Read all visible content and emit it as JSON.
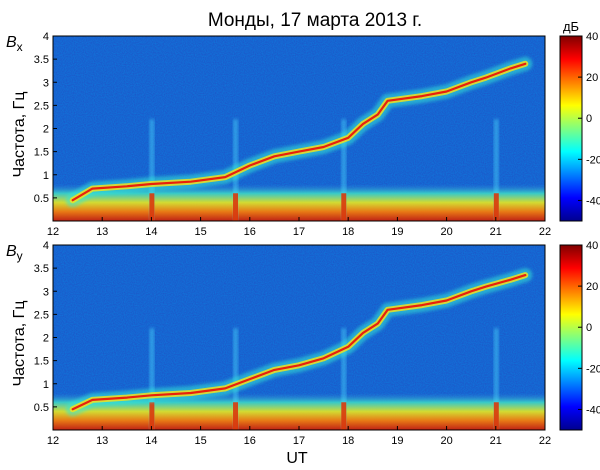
{
  "chart_data": {
    "type": "heatmap",
    "title": "Монды, 17 марта 2013 г.",
    "xlabel": "UT",
    "xlim": [
      12,
      22
    ],
    "x_ticks": [
      "12",
      "13",
      "14",
      "15",
      "16",
      "17",
      "18",
      "19",
      "20",
      "21",
      "22"
    ],
    "colorbar": {
      "unit": "дБ",
      "range": [
        -50,
        40
      ],
      "colormap": "jet",
      "ticks": [
        "40",
        "20",
        "0",
        "-20",
        "-40"
      ]
    },
    "panels": [
      {
        "name": "Bx-panel",
        "component": {
          "letter": "B",
          "subscript": "x"
        },
        "ylabel": "Частота, Гц",
        "ylim": [
          0,
          4
        ],
        "y_ticks": [
          "0.5",
          "1",
          "1.5",
          "2",
          "2.5",
          "3",
          "3.5",
          "4"
        ],
        "emission_band": [
          {
            "ut": 12.4,
            "freq_hz": 0.45
          },
          {
            "ut": 12.8,
            "freq_hz": 0.7
          },
          {
            "ut": 13.5,
            "freq_hz": 0.75
          },
          {
            "ut": 14.0,
            "freq_hz": 0.8
          },
          {
            "ut": 14.8,
            "freq_hz": 0.85
          },
          {
            "ut": 15.5,
            "freq_hz": 0.95
          },
          {
            "ut": 16.0,
            "freq_hz": 1.2
          },
          {
            "ut": 16.5,
            "freq_hz": 1.4
          },
          {
            "ut": 17.0,
            "freq_hz": 1.5
          },
          {
            "ut": 17.5,
            "freq_hz": 1.6
          },
          {
            "ut": 18.0,
            "freq_hz": 1.8
          },
          {
            "ut": 18.3,
            "freq_hz": 2.1
          },
          {
            "ut": 18.6,
            "freq_hz": 2.3
          },
          {
            "ut": 18.8,
            "freq_hz": 2.6
          },
          {
            "ut": 19.5,
            "freq_hz": 2.7
          },
          {
            "ut": 20.0,
            "freq_hz": 2.8
          },
          {
            "ut": 20.5,
            "freq_hz": 3.0
          },
          {
            "ut": 20.8,
            "freq_hz": 3.1
          },
          {
            "ut": 21.3,
            "freq_hz": 3.3
          },
          {
            "ut": 21.6,
            "freq_hz": 3.4
          }
        ],
        "broadband_bursts_ut": [
          14.0,
          15.7,
          17.9,
          21.0
        ]
      },
      {
        "name": "By-panel",
        "component": {
          "letter": "B",
          "subscript": "y"
        },
        "ylabel": "Частота, Гц",
        "ylim": [
          0,
          4
        ],
        "y_ticks": [
          "0.5",
          "1",
          "1.5",
          "2",
          "2.5",
          "3",
          "3.5",
          "4"
        ],
        "emission_band": [
          {
            "ut": 12.4,
            "freq_hz": 0.45
          },
          {
            "ut": 12.8,
            "freq_hz": 0.65
          },
          {
            "ut": 13.5,
            "freq_hz": 0.7
          },
          {
            "ut": 14.0,
            "freq_hz": 0.75
          },
          {
            "ut": 14.8,
            "freq_hz": 0.8
          },
          {
            "ut": 15.5,
            "freq_hz": 0.9
          },
          {
            "ut": 16.0,
            "freq_hz": 1.1
          },
          {
            "ut": 16.5,
            "freq_hz": 1.3
          },
          {
            "ut": 17.0,
            "freq_hz": 1.4
          },
          {
            "ut": 17.5,
            "freq_hz": 1.55
          },
          {
            "ut": 18.0,
            "freq_hz": 1.8
          },
          {
            "ut": 18.3,
            "freq_hz": 2.1
          },
          {
            "ut": 18.6,
            "freq_hz": 2.3
          },
          {
            "ut": 18.8,
            "freq_hz": 2.6
          },
          {
            "ut": 19.5,
            "freq_hz": 2.7
          },
          {
            "ut": 20.0,
            "freq_hz": 2.8
          },
          {
            "ut": 20.5,
            "freq_hz": 3.0
          },
          {
            "ut": 20.8,
            "freq_hz": 3.1
          },
          {
            "ut": 21.3,
            "freq_hz": 3.25
          },
          {
            "ut": 21.6,
            "freq_hz": 3.35
          }
        ],
        "broadband_bursts_ut": [
          14.0,
          15.7,
          17.9,
          21.0
        ]
      }
    ]
  }
}
